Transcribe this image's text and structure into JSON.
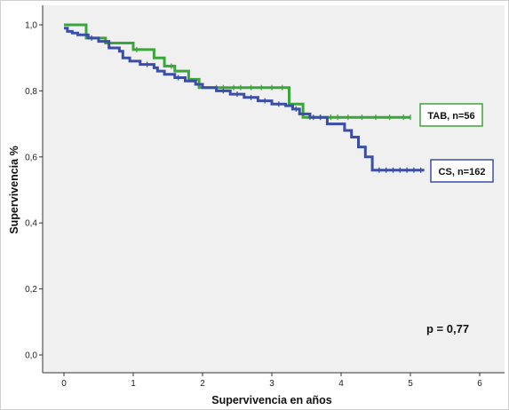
{
  "chart_data": {
    "type": "line",
    "title": "",
    "xlabel": "Supervivencia en años",
    "ylabel": "Supervivencia %",
    "xlim": [
      0,
      6
    ],
    "ylim": [
      0,
      1
    ],
    "x_ticks": [
      0,
      1,
      2,
      3,
      4,
      5,
      6
    ],
    "y_ticks": [
      0,
      0.2,
      0.4,
      0.6,
      0.8,
      1.0
    ],
    "x_tick_labels": [
      "0",
      "1",
      "2",
      "3",
      "4",
      "5",
      "6"
    ],
    "y_tick_labels": [
      "0,0",
      "0,2",
      "0,4",
      "0,6",
      "0,8",
      "1,0"
    ],
    "grid": false,
    "series": [
      {
        "name": "TAB, n=56",
        "color": "#3aa63a",
        "step": true,
        "x": [
          0,
          0.32,
          0.32,
          0.6,
          0.6,
          1.0,
          1.0,
          1.3,
          1.3,
          1.45,
          1.45,
          1.6,
          1.6,
          1.8,
          1.8,
          1.95,
          1.95,
          2.05,
          2.05,
          3.25,
          3.25,
          3.45,
          3.45,
          5.0
        ],
        "y": [
          1.0,
          1.0,
          0.96,
          0.96,
          0.945,
          0.945,
          0.925,
          0.925,
          0.9,
          0.9,
          0.875,
          0.875,
          0.86,
          0.86,
          0.835,
          0.835,
          0.81,
          0.81,
          0.81,
          0.81,
          0.76,
          0.76,
          0.72,
          0.72
        ],
        "censor_x": [
          1.05,
          1.55,
          2.2,
          2.3,
          2.45,
          2.55,
          2.7,
          2.85,
          3.0,
          3.15,
          3.55,
          3.7,
          3.85,
          3.95,
          4.1,
          4.3,
          4.5,
          4.7,
          4.9,
          5.0
        ]
      },
      {
        "name": "CS, n=162",
        "color": "#3a4ea8",
        "step": true,
        "x": [
          0,
          0.05,
          0.05,
          0.12,
          0.12,
          0.2,
          0.2,
          0.35,
          0.35,
          0.5,
          0.5,
          0.65,
          0.65,
          0.8,
          0.8,
          0.85,
          0.85,
          0.95,
          0.95,
          1.1,
          1.1,
          1.3,
          1.3,
          1.35,
          1.35,
          1.45,
          1.45,
          1.6,
          1.6,
          1.75,
          1.75,
          1.9,
          1.9,
          2.0,
          2.0,
          2.2,
          2.2,
          2.4,
          2.4,
          2.6,
          2.6,
          2.8,
          2.8,
          3.0,
          3.0,
          3.2,
          3.2,
          3.3,
          3.3,
          3.4,
          3.4,
          3.55,
          3.55,
          3.8,
          3.8,
          4.05,
          4.05,
          4.15,
          4.15,
          4.25,
          4.25,
          4.35,
          4.35,
          4.45,
          4.45,
          5.2
        ],
        "y": [
          0.99,
          0.99,
          0.98,
          0.98,
          0.975,
          0.975,
          0.97,
          0.97,
          0.96,
          0.96,
          0.95,
          0.95,
          0.93,
          0.93,
          0.92,
          0.92,
          0.9,
          0.9,
          0.89,
          0.89,
          0.88,
          0.88,
          0.87,
          0.87,
          0.86,
          0.86,
          0.85,
          0.85,
          0.84,
          0.84,
          0.83,
          0.83,
          0.82,
          0.82,
          0.81,
          0.81,
          0.8,
          0.8,
          0.79,
          0.79,
          0.78,
          0.78,
          0.77,
          0.77,
          0.76,
          0.76,
          0.755,
          0.755,
          0.745,
          0.745,
          0.73,
          0.73,
          0.72,
          0.72,
          0.7,
          0.7,
          0.68,
          0.68,
          0.66,
          0.66,
          0.63,
          0.63,
          0.6,
          0.6,
          0.56,
          0.56
        ],
        "censor_x": [
          0.4,
          1.2,
          1.65,
          2.3,
          2.5,
          2.7,
          2.9,
          3.1,
          3.35,
          3.6,
          3.7,
          4.55,
          4.65,
          4.75,
          4.85,
          4.95,
          5.05,
          5.15
        ]
      }
    ],
    "legend": "right",
    "annotations": [
      {
        "text": "p = 0,77"
      }
    ]
  }
}
